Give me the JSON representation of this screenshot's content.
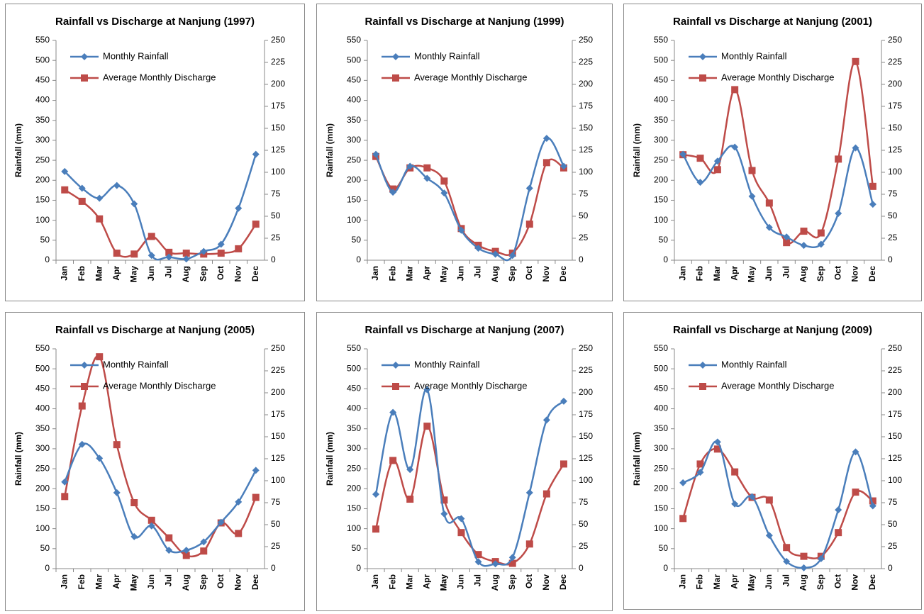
{
  "chart_data": [
    {
      "type": "line",
      "title": "Rainfall vs Discharge at Nanjung (1997)",
      "y_label": "Rainfall (mm)",
      "categories": [
        "Jan",
        "Feb",
        "Mar",
        "Apr",
        "May",
        "Jun",
        "Jul",
        "Aug",
        "Sep",
        "Oct",
        "Nov",
        "Dec"
      ],
      "series": [
        {
          "name": "Monthly Rainfall",
          "color": "#4a7ebb",
          "values": [
            222,
            180,
            155,
            187,
            141,
            12,
            8,
            3,
            22,
            40,
            130,
            265
          ]
        },
        {
          "name": "Average Monthly Discharge",
          "color": "#be4b48",
          "axis": "y2",
          "values": [
            80,
            67,
            47,
            8,
            7,
            27,
            9,
            8,
            7,
            8,
            13,
            41
          ]
        }
      ],
      "ylim": [
        0,
        550
      ],
      "yticks": [
        0,
        50,
        100,
        150,
        200,
        250,
        300,
        350,
        400,
        450,
        500,
        550
      ],
      "y2lim": [
        0,
        250
      ],
      "y2ticks": [
        0,
        25,
        50,
        75,
        100,
        125,
        150,
        175,
        200,
        225,
        250
      ],
      "legend": "upper left"
    },
    {
      "type": "line",
      "title": "Rainfall vs Discharge at Nanjung (1999)",
      "y_label": "Rainfall (mm)",
      "categories": [
        "Jan",
        "Feb",
        "Mar",
        "Apr",
        "May",
        "Jun",
        "Jul",
        "Aug",
        "Sep",
        "Oct",
        "Nov",
        "Dec"
      ],
      "series": [
        {
          "name": "Monthly Rainfall",
          "color": "#4a7ebb",
          "values": [
            265,
            170,
            235,
            205,
            168,
            75,
            30,
            15,
            12,
            180,
            305,
            235
          ]
        },
        {
          "name": "Average Monthly Discharge",
          "color": "#be4b48",
          "axis": "y2",
          "values": [
            118,
            81,
            105,
            105,
            90,
            36,
            17,
            10,
            8,
            41,
            111,
            105
          ]
        }
      ],
      "ylim": [
        0,
        550
      ],
      "yticks": [
        0,
        50,
        100,
        150,
        200,
        250,
        300,
        350,
        400,
        450,
        500,
        550
      ],
      "y2lim": [
        0,
        250
      ],
      "y2ticks": [
        0,
        25,
        50,
        75,
        100,
        125,
        150,
        175,
        200,
        225,
        250
      ],
      "legend": "upper left"
    },
    {
      "type": "line",
      "title": "Rainfall vs Discharge at Nanjung (2001)",
      "y_label": "Rainfall (mm)",
      "categories": [
        "Jan",
        "Feb",
        "Mar",
        "Apr",
        "May",
        "Jun",
        "Jul",
        "Aug",
        "Sep",
        "Oct",
        "Nov",
        "Dec"
      ],
      "series": [
        {
          "name": "Monthly Rainfall",
          "color": "#4a7ebb",
          "values": [
            265,
            195,
            248,
            283,
            160,
            82,
            58,
            37,
            40,
            117,
            281,
            140
          ]
        },
        {
          "name": "Average Monthly Discharge",
          "color": "#be4b48",
          "axis": "y2",
          "values": [
            120,
            116,
            103,
            194,
            102,
            65,
            20,
            33,
            31,
            115,
            226,
            84
          ]
        }
      ],
      "ylim": [
        0,
        550
      ],
      "yticks": [
        0,
        50,
        100,
        150,
        200,
        250,
        300,
        350,
        400,
        450,
        500,
        550
      ],
      "y2lim": [
        0,
        250
      ],
      "y2ticks": [
        0,
        25,
        50,
        75,
        100,
        125,
        150,
        175,
        200,
        225,
        250
      ],
      "legend": "upper left"
    },
    {
      "type": "line",
      "title": "Rainfall vs Discharge at Nanjung (2005)",
      "y_label": "Rainfall (mm)",
      "categories": [
        "Jan",
        "Feb",
        "Mar",
        "Apr",
        "May",
        "Jun",
        "Jul",
        "Aug",
        "Sep",
        "Oct",
        "Nov",
        "Dec"
      ],
      "series": [
        {
          "name": "Monthly Rainfall",
          "color": "#4a7ebb",
          "values": [
            217,
            311,
            276,
            190,
            80,
            107,
            46,
            46,
            67,
            116,
            167,
            246
          ]
        },
        {
          "name": "Average Monthly Discharge",
          "color": "#be4b48",
          "axis": "y2",
          "values": [
            82,
            185,
            241,
            141,
            75,
            55,
            35,
            15,
            20,
            52,
            40,
            81
          ]
        }
      ],
      "ylim": [
        0,
        550
      ],
      "yticks": [
        0,
        50,
        100,
        150,
        200,
        250,
        300,
        350,
        400,
        450,
        500,
        550
      ],
      "y2lim": [
        0,
        250
      ],
      "y2ticks": [
        0,
        25,
        50,
        75,
        100,
        125,
        150,
        175,
        200,
        225,
        250
      ],
      "legend": "upper left"
    },
    {
      "type": "line",
      "title": "Rainfall vs Discharge at Nanjung (2007)",
      "y_label": "Rainfall (mm)",
      "categories": [
        "Jan",
        "Feb",
        "Mar",
        "Apr",
        "May",
        "Jun",
        "Jul",
        "Aug",
        "Sep",
        "Oct",
        "Nov",
        "Dec"
      ],
      "series": [
        {
          "name": "Monthly Rainfall",
          "color": "#4a7ebb",
          "values": [
            186,
            391,
            248,
            448,
            137,
            125,
            17,
            12,
            28,
            190,
            372,
            419
          ]
        },
        {
          "name": "Average Monthly Discharge",
          "color": "#be4b48",
          "axis": "y2",
          "values": [
            45,
            123,
            79,
            162,
            78,
            41,
            16,
            8,
            6,
            28,
            85,
            119
          ]
        }
      ],
      "ylim": [
        0,
        550
      ],
      "yticks": [
        0,
        50,
        100,
        150,
        200,
        250,
        300,
        350,
        400,
        450,
        500,
        550
      ],
      "y2lim": [
        0,
        250
      ],
      "y2ticks": [
        0,
        25,
        50,
        75,
        100,
        125,
        150,
        175,
        200,
        225,
        250
      ],
      "legend": "upper left"
    },
    {
      "type": "line",
      "title": "Rainfall vs Discharge at Nanjung (2009)",
      "y_label": "Rainfall (mm)",
      "categories": [
        "Jan",
        "Feb",
        "Mar",
        "Apr",
        "May",
        "Jun",
        "Jul",
        "Aug",
        "Sep",
        "Oct",
        "Nov",
        "Dec"
      ],
      "series": [
        {
          "name": "Monthly Rainfall",
          "color": "#4a7ebb",
          "values": [
            215,
            241,
            317,
            162,
            180,
            83,
            18,
            2,
            25,
            147,
            292,
            157
          ]
        },
        {
          "name": "Average Monthly Discharge",
          "color": "#be4b48",
          "axis": "y2",
          "values": [
            57,
            119,
            136,
            110,
            81,
            78,
            24,
            14,
            14,
            41,
            87,
            77
          ]
        }
      ],
      "ylim": [
        0,
        550
      ],
      "yticks": [
        0,
        50,
        100,
        150,
        200,
        250,
        300,
        350,
        400,
        450,
        500,
        550
      ],
      "y2lim": [
        0,
        250
      ],
      "y2ticks": [
        0,
        25,
        50,
        75,
        100,
        125,
        150,
        175,
        200,
        225,
        250
      ],
      "legend": "upper left"
    }
  ]
}
